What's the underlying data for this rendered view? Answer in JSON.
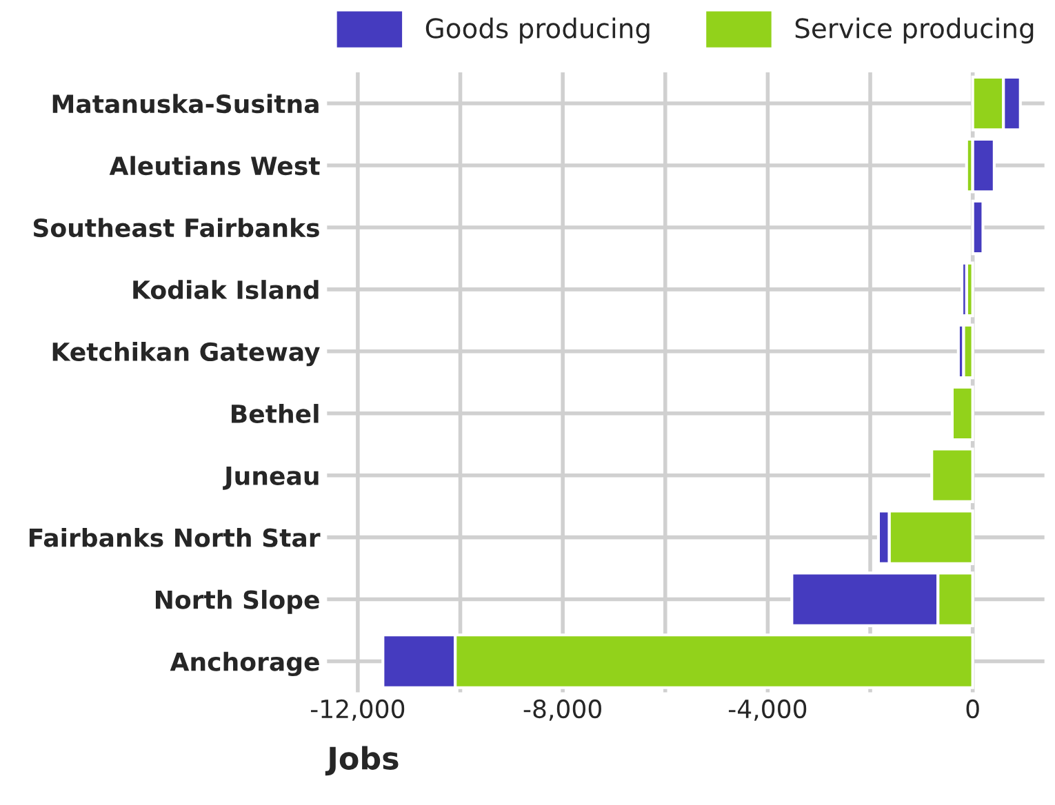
{
  "chart_data": {
    "type": "bar",
    "orientation": "horizontal",
    "stacked": true,
    "categories": [
      "Matanuska-Susitna",
      "Aleutians West",
      "Southeast Fairbanks",
      "Kodiak Island",
      "Ketchikan Gateway",
      "Bethel",
      "Juneau",
      "Fairbanks North Star",
      "North Slope",
      "Anchorage"
    ],
    "series": [
      {
        "name": "Service producing",
        "color": "#92d21b",
        "values": [
          600,
          -120,
          null,
          -120,
          -180,
          -400,
          -800,
          -1630,
          -680,
          -10100
        ]
      },
      {
        "name": "Goods producing",
        "color": "#453bbf",
        "values": [
          330,
          420,
          200,
          -90,
          -100,
          null,
          null,
          -210,
          -2850,
          -1410
        ]
      }
    ],
    "xlabel": "Jobs",
    "xlim": [
      -12600,
      1400
    ],
    "xticks": [
      {
        "value": -12000,
        "label": "-12,000"
      },
      {
        "value": -10000,
        "label": null
      },
      {
        "value": -8000,
        "label": "-8,000"
      },
      {
        "value": -6000,
        "label": null
      },
      {
        "value": -4000,
        "label": "-4,000"
      },
      {
        "value": -2000,
        "label": null
      },
      0
    ],
    "grid": true,
    "legend": "top"
  }
}
